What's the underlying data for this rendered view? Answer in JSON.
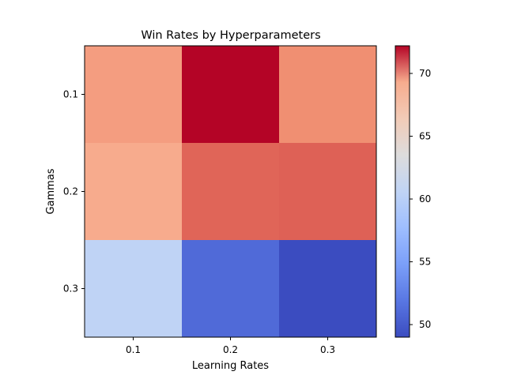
{
  "chart_data": {
    "type": "heatmap",
    "title": "Win Rates by Hyperparameters",
    "xlabel": "Learning Rates",
    "ylabel": "Gammas",
    "x_categories": [
      "0.1",
      "0.2",
      "0.3"
    ],
    "y_categories": [
      "0.1",
      "0.2",
      "0.3"
    ],
    "values": [
      [
        67.5,
        72.2,
        68.5
      ],
      [
        66.5,
        70.0,
        70.1
      ],
      [
        60.5,
        51.0,
        49.0
      ]
    ],
    "colormap": "coolwarm",
    "colorbar": {
      "range": [
        49.0,
        72.2
      ],
      "ticks": [
        50,
        55,
        60,
        65,
        70
      ],
      "tick_labels": [
        "50",
        "55",
        "60",
        "65",
        "70"
      ]
    }
  }
}
